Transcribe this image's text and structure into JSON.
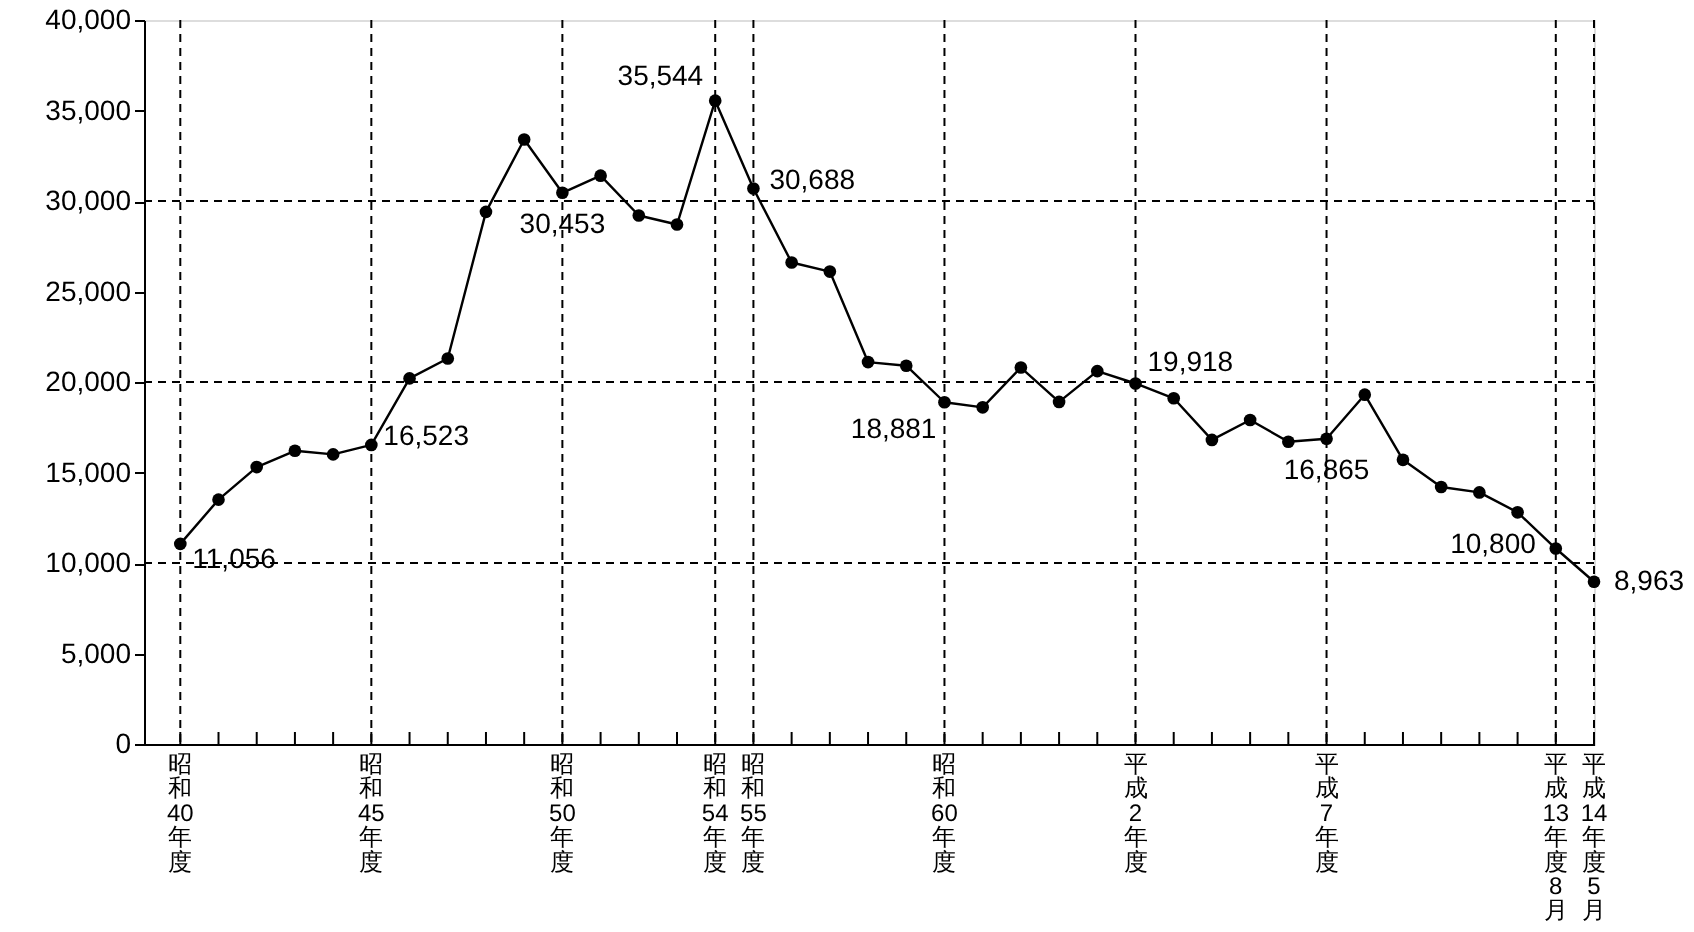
{
  "chart_data": {
    "type": "line",
    "categories": [
      "昭和40年度",
      null,
      null,
      null,
      null,
      "昭和45年度",
      null,
      null,
      null,
      null,
      "昭和50年度",
      null,
      null,
      null,
      "昭和54年度",
      "昭和55年度",
      null,
      null,
      null,
      null,
      "昭和60年度",
      null,
      null,
      null,
      null,
      "平成2年度",
      null,
      null,
      null,
      null,
      "平成7年度",
      null,
      null,
      null,
      null,
      null,
      "平成13年度8月",
      "平成14年度5月"
    ],
    "values": [
      11056,
      13500,
      15300,
      16200,
      16000,
      16523,
      20200,
      21300,
      29400,
      33400,
      30453,
      31400,
      29200,
      28700,
      35544,
      30688,
      26600,
      26100,
      21100,
      20900,
      18881,
      18600,
      20800,
      18900,
      20600,
      19918,
      19100,
      16800,
      17900,
      16700,
      16865,
      19300,
      15700,
      14200,
      13900,
      12800,
      10800,
      8963
    ],
    "value_labels": [
      "11,056",
      null,
      null,
      null,
      null,
      "16,523",
      null,
      null,
      null,
      null,
      "30,453",
      null,
      null,
      null,
      "35,544",
      "30,688",
      null,
      null,
      null,
      null,
      "18,881",
      null,
      null,
      null,
      null,
      "19,918",
      null,
      null,
      null,
      null,
      "16,865",
      null,
      null,
      null,
      null,
      null,
      "10,800",
      "8,963"
    ],
    "color": "#000000",
    "ylim": [
      0,
      40000
    ],
    "yticks": [
      0,
      {
        "value": 5000,
        "label": "5,000"
      },
      {
        "value": 10000,
        "label": "10,000"
      },
      {
        "value": 15000,
        "label": "15,000"
      },
      {
        "value": 20000,
        "label": "20,000"
      },
      {
        "value": 25000,
        "label": "25,000"
      },
      {
        "value": 30000,
        "label": "30,000"
      },
      {
        "value": 35000,
        "label": "35,000"
      },
      {
        "value": 40000,
        "label": "40,000"
      }
    ],
    "grid": "x",
    "marker": "circle",
    "line_style": "solid",
    "ref_lines": [
      {
        "axis": "y",
        "value": 10000,
        "line_style": "dashed"
      },
      {
        "axis": "y",
        "value": 20000,
        "line_style": "dashed"
      },
      {
        "axis": "y",
        "value": 30000,
        "line_style": "dashed"
      }
    ]
  }
}
